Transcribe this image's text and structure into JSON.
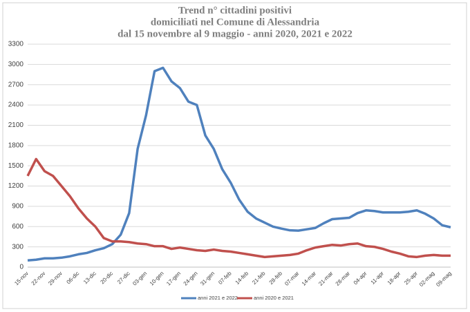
{
  "chart_data": {
    "type": "line",
    "title": [
      "Trend n° cittadini positivi",
      "domiciliati nel Comune di Alessandria",
      "dal 15 novembre al 9 maggio - anni 2020, 2021 e 2022"
    ],
    "categories": [
      "15-nov",
      null,
      "22-nov",
      null,
      "29-nov",
      null,
      "06-dic",
      null,
      "13-dic",
      null,
      "20-dic",
      null,
      "27-dic",
      null,
      "03-gen",
      null,
      "10-gen",
      null,
      "17-gen",
      null,
      "24-gen",
      null,
      "31-gen",
      null,
      "07-feb",
      null,
      "14-feb",
      null,
      "21-feb",
      null,
      "28-feb",
      null,
      "07-mar",
      null,
      "14-mar",
      null,
      "21-mar",
      null,
      "28-mar",
      null,
      "04-apr",
      null,
      "11-apr",
      null,
      "18-apr",
      null,
      "25-apr",
      null,
      "02-mag",
      null,
      "09-mag"
    ],
    "series": [
      {
        "name": "anni 2021 e 2022",
        "color": "#4f81bd",
        "values": [
          100,
          110,
          130,
          130,
          140,
          160,
          190,
          210,
          250,
          280,
          340,
          480,
          800,
          1750,
          2250,
          2900,
          2950,
          2750,
          2650,
          2450,
          2400,
          1950,
          1750,
          1450,
          1250,
          1000,
          820,
          720,
          660,
          600,
          570,
          545,
          540,
          560,
          580,
          650,
          710,
          720,
          730,
          800,
          840,
          830,
          810,
          810,
          810,
          820,
          840,
          790,
          720,
          620,
          590
        ]
      },
      {
        "name": "anni 2020 e 2021",
        "color": "#c0504d",
        "values": [
          1350,
          1600,
          1420,
          1350,
          1200,
          1050,
          870,
          720,
          600,
          430,
          380,
          380,
          370,
          350,
          340,
          310,
          310,
          270,
          290,
          270,
          250,
          240,
          260,
          240,
          230,
          210,
          190,
          170,
          150,
          160,
          170,
          180,
          200,
          250,
          290,
          310,
          330,
          320,
          340,
          350,
          310,
          300,
          270,
          230,
          200,
          160,
          150,
          170,
          180,
          170,
          170
        ]
      }
    ],
    "ylim": [
      0,
      3300
    ],
    "yticks": [
      0,
      300,
      600,
      900,
      1200,
      1500,
      1800,
      2100,
      2400,
      2700,
      3000,
      3300
    ],
    "grid": true,
    "legend": "bottom"
  }
}
